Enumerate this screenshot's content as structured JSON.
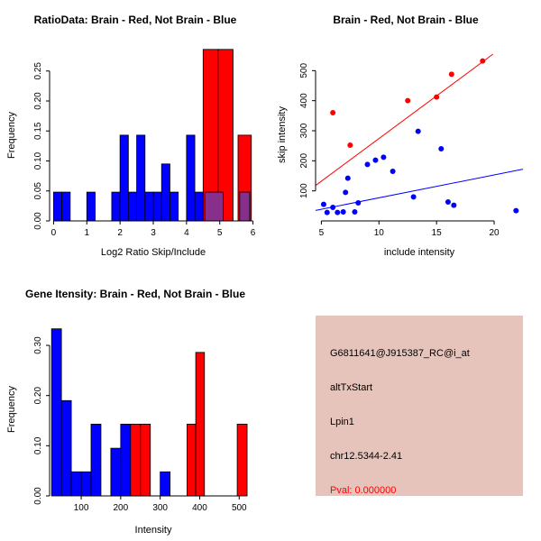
{
  "page": {
    "background": "#ffffff"
  },
  "colors": {
    "red": "#ff0000",
    "blue": "#0000ff",
    "purple": "#882e8b",
    "axis": "#000000",
    "info_bg": "#e6c4bb",
    "pval_text": "#ff0000"
  },
  "chart_data": [
    {
      "type": "bar",
      "title": "RatioData: Brain - Red, Not Brain - Blue",
      "xlabel": "Log2 Ratio Skip/Include",
      "ylabel": "Frequency",
      "xlim": [
        -0.12,
        6.12
      ],
      "ylim": [
        0,
        0.2857
      ],
      "xticks": [
        0,
        1,
        2,
        3,
        4,
        5,
        6
      ],
      "yticks": [
        0.0,
        0.05,
        0.1,
        0.15,
        0.2,
        0.25
      ],
      "ytick_labels": [
        "0.00",
        "0.05",
        "0.10",
        "0.15",
        "0.20",
        "0.25"
      ],
      "grid": false,
      "bars": [
        {
          "x0": 0.0,
          "x1": 0.25,
          "h": 0.048,
          "color": "blue"
        },
        {
          "x0": 0.25,
          "x1": 0.5,
          "h": 0.048,
          "color": "blue"
        },
        {
          "x0": 1.0,
          "x1": 1.25,
          "h": 0.048,
          "color": "blue"
        },
        {
          "x0": 1.75,
          "x1": 2.0,
          "h": 0.048,
          "color": "blue"
        },
        {
          "x0": 2.0,
          "x1": 2.25,
          "h": 0.143,
          "color": "blue"
        },
        {
          "x0": 2.25,
          "x1": 2.5,
          "h": 0.048,
          "color": "blue"
        },
        {
          "x0": 2.5,
          "x1": 2.75,
          "h": 0.143,
          "color": "blue"
        },
        {
          "x0": 2.75,
          "x1": 3.0,
          "h": 0.048,
          "color": "blue"
        },
        {
          "x0": 3.0,
          "x1": 3.25,
          "h": 0.048,
          "color": "blue"
        },
        {
          "x0": 3.25,
          "x1": 3.5,
          "h": 0.095,
          "color": "blue"
        },
        {
          "x0": 3.5,
          "x1": 3.75,
          "h": 0.048,
          "color": "blue"
        },
        {
          "x0": 4.0,
          "x1": 4.25,
          "h": 0.143,
          "color": "blue"
        },
        {
          "x0": 4.25,
          "x1": 4.5,
          "h": 0.048,
          "color": "blue"
        },
        {
          "x0": 4.5,
          "x1": 4.95,
          "h": 0.286,
          "color": "red"
        },
        {
          "x0": 4.95,
          "x1": 5.4,
          "h": 0.286,
          "color": "red"
        },
        {
          "x0": 5.55,
          "x1": 5.95,
          "h": 0.143,
          "color": "red"
        },
        {
          "x0": 4.55,
          "x1": 5.1,
          "h": 0.048,
          "color": "purple"
        },
        {
          "x0": 5.6,
          "x1": 5.9,
          "h": 0.048,
          "color": "purple"
        }
      ]
    },
    {
      "type": "scatter",
      "title": "Brain - Red, Not Brain - Blue",
      "xlabel": "include intensity",
      "ylabel": "skip intensity",
      "xlim": [
        4.5,
        22.5
      ],
      "ylim": [
        0,
        570
      ],
      "xticks": [
        5,
        10,
        15,
        20
      ],
      "yticks": [
        100,
        200,
        300,
        400,
        500
      ],
      "grid": false,
      "series": [
        {
          "name": "Brain",
          "color": "red",
          "points": [
            [
              6,
              360
            ],
            [
              7.5,
              252
            ],
            [
              12.5,
              400
            ],
            [
              15,
              412
            ],
            [
              16.3,
              488
            ],
            [
              19,
              532
            ]
          ]
        },
        {
          "name": "Not Brain",
          "color": "blue",
          "points": [
            [
              5.2,
              55
            ],
            [
              5.5,
              28
            ],
            [
              6.0,
              45
            ],
            [
              6.4,
              28
            ],
            [
              6.9,
              30
            ],
            [
              7.1,
              95
            ],
            [
              7.3,
              142
            ],
            [
              7.9,
              30
            ],
            [
              8.2,
              60
            ],
            [
              9.0,
              188
            ],
            [
              9.7,
              202
            ],
            [
              10.4,
              212
            ],
            [
              11.2,
              165
            ],
            [
              13.0,
              80
            ],
            [
              13.4,
              298
            ],
            [
              15.4,
              240
            ],
            [
              16.0,
              63
            ],
            [
              16.5,
              52
            ],
            [
              21.9,
              34
            ]
          ]
        }
      ],
      "lines": [
        {
          "color": "red",
          "x": [
            4.5,
            19.9
          ],
          "y": [
            118,
            555
          ]
        },
        {
          "color": "blue",
          "x": [
            4.5,
            22.5
          ],
          "y": [
            35,
            172
          ]
        }
      ]
    },
    {
      "type": "bar",
      "title": "Gene Itensity: Brain - Red, Not Brain - Blue",
      "xlabel": "Intensity",
      "ylabel": "Frequency",
      "xlim": [
        20,
        545
      ],
      "ylim": [
        0,
        0.345
      ],
      "xticks": [
        100,
        200,
        300,
        400,
        500
      ],
      "yticks": [
        0.0,
        0.1,
        0.2,
        0.3
      ],
      "ytick_labels": [
        "0.00",
        "0.10",
        "0.20",
        "0.30"
      ],
      "grid": false,
      "bars": [
        {
          "x0": 25,
          "x1": 50,
          "h": 0.333,
          "color": "blue"
        },
        {
          "x0": 50,
          "x1": 75,
          "h": 0.19,
          "color": "blue"
        },
        {
          "x0": 75,
          "x1": 100,
          "h": 0.048,
          "color": "blue"
        },
        {
          "x0": 100,
          "x1": 125,
          "h": 0.048,
          "color": "blue"
        },
        {
          "x0": 125,
          "x1": 150,
          "h": 0.143,
          "color": "blue"
        },
        {
          "x0": 175,
          "x1": 200,
          "h": 0.095,
          "color": "blue"
        },
        {
          "x0": 200,
          "x1": 225,
          "h": 0.143,
          "color": "blue"
        },
        {
          "x0": 225,
          "x1": 250,
          "h": 0.143,
          "color": "red"
        },
        {
          "x0": 250,
          "x1": 275,
          "h": 0.143,
          "color": "red"
        },
        {
          "x0": 300,
          "x1": 325,
          "h": 0.048,
          "color": "blue"
        },
        {
          "x0": 368,
          "x1": 390,
          "h": 0.143,
          "color": "red"
        },
        {
          "x0": 390,
          "x1": 412,
          "h": 0.286,
          "color": "red"
        },
        {
          "x0": 495,
          "x1": 520,
          "h": 0.143,
          "color": "red"
        }
      ]
    }
  ],
  "info_panel": {
    "probe_id": "G6811641@J915387_RC@i_at",
    "event_type": "altTxStart",
    "gene_symbol": "Lpin1",
    "location": "chr12.5344-2.41",
    "pval": "Pval: 0.000000"
  }
}
